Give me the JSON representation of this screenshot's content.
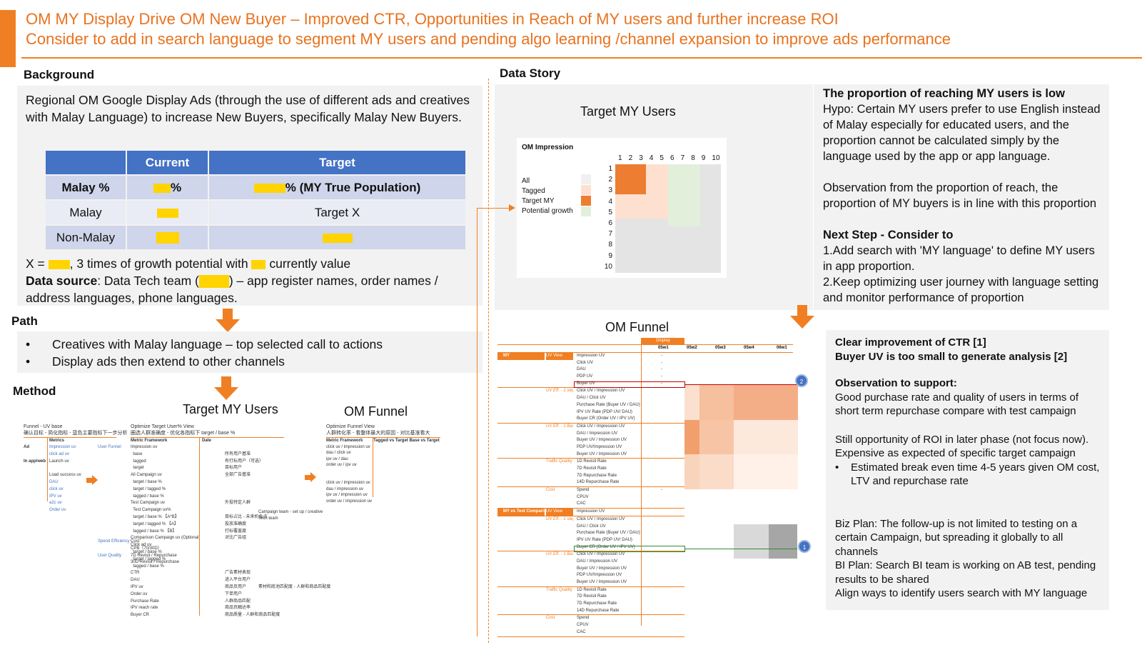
{
  "title": {
    "line1": "OM MY Display Drive OM New Buyer – Improved CTR, Opportunities in Reach of MY users and further increase ROI",
    "line2": "Consider to add in search language to segment MY users and pending algo learning /channel expansion to improve ads performance"
  },
  "background": {
    "heading": "Background",
    "text": "Regional OM Google Display Ads (through the use of different ads and creatives with Malay Language) to increase New Buyers, specifically Malay New Buyers.",
    "table": {
      "headers": [
        "",
        "Current",
        "Target"
      ],
      "rows": [
        {
          "label": "Malay %",
          "current_suffix": "%",
          "target_suffix": "% (MY True Population)"
        },
        {
          "label": "Malay",
          "current_suffix": "",
          "target_suffix": "Target X"
        },
        {
          "label": "Non-Malay",
          "current_suffix": "",
          "target_suffix": ""
        }
      ]
    },
    "x_line_a": "X = ",
    "x_line_b": ", 3 times of growth potential with ",
    "x_line_c": " currently value",
    "source_label": "Data source",
    "source_a": ": Data Tech team (",
    "source_b": ") – app register names, order names / address languages, phone languages."
  },
  "path": {
    "heading": "Path",
    "bullets": [
      "Creatives with Malay language – top selected call to actions",
      "Display ads then extend to other channels"
    ]
  },
  "method": {
    "heading": "Method",
    "target_title": "Target MY Users",
    "funnel_title": "OM Funnel",
    "left_header_1": "Funnel - UV base",
    "left_header_2": "确认目标 - 简化指标 - 蓝色主要指标下一步分析",
    "left_metrics_label": "Metrics",
    "left_rows": [
      {
        "stage": "Ad",
        "metric": "Impression uv",
        "user": "User Funnel"
      },
      {
        "stage": "",
        "metric": "click ad uv",
        "user": ""
      },
      {
        "stage": "In app/web",
        "metric": "Launch uv",
        "user": ""
      },
      {
        "stage": "",
        "metric": "",
        "user": ""
      },
      {
        "stage": "",
        "metric": "Load success uv",
        "user": ""
      },
      {
        "stage": "",
        "metric": "DAU",
        "user": ""
      },
      {
        "stage": "",
        "metric": "click uv",
        "user": ""
      },
      {
        "stage": "",
        "metric": "IPV uv",
        "user": ""
      },
      {
        "stage": "",
        "metric": "a2c uv",
        "user": ""
      },
      {
        "stage": "",
        "metric": "Order uv",
        "user": ""
      }
    ],
    "left_bottom": [
      {
        "label": "Spend Efficiency",
        "metric": "Cost"
      },
      {
        "label": "",
        "metric": "CPB（70/30D）"
      },
      {
        "label": "User Quality",
        "metric": "7D Revisit / Repurchase"
      },
      {
        "label": "",
        "metric": "30D Revisit / Repurchase"
      }
    ],
    "mid_header_1": "Optimize Target User% View",
    "mid_header_2": "圈选人群准确度 - 优化各指标下 target / base %",
    "mid_cols": [
      "Metric Framework",
      "Date"
    ],
    "mid_rows": [
      {
        "m": "Impression uv",
        "d": ""
      },
      {
        "m": "  base",
        "d": "所有用户基准"
      },
      {
        "m": "  tagged",
        "d": "有打标用户（可选）"
      },
      {
        "m": "  target",
        "d": "目标用户"
      },
      {
        "m": "All Campaign uv",
        "d": "全部广告基准"
      },
      {
        "m": "  target / base %",
        "d": ""
      },
      {
        "m": "  target / tagged %",
        "d": ""
      },
      {
        "m": "  tagged / base %",
        "d": ""
      },
      {
        "m": "Test Campaign uv",
        "d": "外投特定人群"
      },
      {
        "m": "  Test Campaign uv%",
        "d": ""
      },
      {
        "m": "  target / base % 【A*B】",
        "d": "目标占比 - 未来机会点"
      },
      {
        "m": "  target / tagged % 【A】",
        "d": "投放准确度"
      },
      {
        "m": "  tagged / base % 【B】",
        "d": "打标覆盖度"
      },
      {
        "m": "Comparison Campaign uv (Optional)",
        "d": "对比广告组"
      },
      {
        "m": "Click ad uv",
        "d": ""
      },
      {
        "m": "  target / base %",
        "d": ""
      },
      {
        "m": "  target / tagged %",
        "d": ""
      },
      {
        "m": "  tagged / base %",
        "d": ""
      },
      {
        "m": "CTR",
        "d": "广告素材表现"
      },
      {
        "m": "DAU",
        "d": "进入平台用户"
      },
      {
        "m": "IPV uv",
        "d": "商品页用户"
      },
      {
        "m": "Order uv",
        "d": "下单用户"
      },
      {
        "m": "Purchase Rate",
        "d": "人群商品匹配"
      },
      {
        "m": "IPV reach rate",
        "d": "商品页触达率"
      },
      {
        "m": "Buyer CR",
        "d": "商品质量 - 人群和商品匹配度"
      }
    ],
    "mid_team_1": "Campaign team - set up / creative",
    "mid_team_2": "Tech team",
    "mid_note": "素材和底池匹配度 - 人群和商品匹配度",
    "right_header_1": "Optimize Funnel View",
    "right_header_2": "人群转化率 - 看整体最大的原因 - 对比基准看大",
    "right_cols": [
      "Metric Framework",
      "Tagged vs Target  Base vs Target"
    ],
    "right_rows": [
      "click uv / impression uv",
      "dau / click uv",
      "ipv uv / dau",
      "order uv / ipv uv",
      "",
      "",
      "click uv / impression uv",
      "dau / impression uv",
      "ipv uv / impression uv",
      "order uv / impression uv"
    ]
  },
  "data_story": {
    "heading": "Data Story",
    "target_title": "Target MY Users",
    "impression_title": "OM Impression",
    "legend": [
      "All",
      "Tagged",
      "Target MY",
      "Potential growth"
    ],
    "legend_colors": [
      "#f0f0f0",
      "#fde0d0",
      "#ed7d31",
      "#e2efda"
    ],
    "grid_cols": [
      "1",
      "2",
      "3",
      "4",
      "5",
      "6",
      "7",
      "8",
      "9",
      "10"
    ],
    "grid_rows": [
      "1",
      "2",
      "3",
      "4",
      "5",
      "6",
      "7",
      "8",
      "9",
      "10"
    ],
    "funnel_title": "OM Funnel",
    "funnel_col_header": "Display",
    "funnel_weeks": [
      "05w1",
      "05w2",
      "05w3",
      "05w4",
      "06w1"
    ],
    "funnel_sections": [
      {
        "label": "MY",
        "sub": "UV View",
        "rows": [
          "Impression UV",
          "Click UV",
          "DAU",
          "PDP UV",
          "Buyer UV"
        ]
      },
      {
        "label": "",
        "sub": "UV Eff. - 1 step",
        "rows": [
          "Click UV / Impression UV",
          "DAU / Click UV",
          "Purchase Rate (Buyer UV / DAU)",
          "IPV UV Rate (PDP UV/ DAU)",
          "Buyer CR (Order UV / IPV UV)"
        ]
      },
      {
        "label": "",
        "sub": "UV Eff. - 1 Base",
        "rows": [
          "Click UV / Impression UV",
          "DAU / Impression UV",
          "Buyer UV / Impression UV",
          "PDP UV/Impression UV",
          "Buyer UV / Impression UV"
        ]
      },
      {
        "label": "",
        "sub": "Traffic Quality",
        "rows": [
          "1D Revisit Rate",
          "7D Revisit Rate",
          "7D Repurchase Rate",
          "14D Repurchase Rate"
        ]
      },
      {
        "label": "",
        "sub": "Cost",
        "rows": [
          "Spend",
          "CPUV",
          "CAC"
        ]
      },
      {
        "label": "MY vs Test Comparison",
        "sub": "UV View",
        "rows": [
          "Impression UV"
        ]
      },
      {
        "label": "",
        "sub": "UV Eff. - 1 step",
        "rows": [
          "Click UV / Impression UV",
          "DAU / Click UV",
          "Purchase Rate (Buyer UV / DAU)",
          "IPV UV Rate (PDP UV/ DAU)",
          "Buyer CR (Order UV / IPV UV)"
        ]
      },
      {
        "label": "",
        "sub": "UV Eff. - 1 Base",
        "rows": [
          "Click UV / Impression UV",
          "DAU / Impression UV",
          "Buyer UV / Impression UV",
          "PDP UV/Impression UV",
          "Buyer UV / Impression UV"
        ]
      },
      {
        "label": "",
        "sub": "Traffic Quality",
        "rows": [
          "1D Revisit Rate",
          "7D Revisit Rate",
          "7D Repurchase Rate",
          "14D Repurchase Rate"
        ]
      },
      {
        "label": "",
        "sub": "Cost",
        "rows": [
          "Spend",
          "CPUV",
          "CAC"
        ]
      }
    ],
    "funnel_dash": "-",
    "badge_1": "1",
    "badge_2": "2",
    "proportion_heading": "The proportion of reaching MY users is low",
    "hypo": "Hypo: Certain MY users prefer to use English instead of Malay especially for educated users, and the proportion cannot be calculated simply by the language used by the app or app language.",
    "observation": "Observation from the proportion of reach, the proportion of MY buyers is in line with this proportion",
    "next_heading": "Next Step - Consider to",
    "next_1": "1.Add search with 'MY language' to define MY users in app proportion.",
    "next_2": "2.Keep optimizing user journey with language setting and monitor performance of proportion",
    "ctr_1": "Clear improvement of CTR [1]",
    "ctr_2": "Buyer UV is too small to generate analysis [2]",
    "obs_heading": "Observation to support:",
    "obs_1": "Good purchase rate and quality of users in terms of short term repurchase compare with test campaign",
    "obs_2": "Still opportunity of ROI in later phase (not focus now). Expensive as expected of specific target campaign",
    "obs_bullet": "Estimated break even time 4-5 years given OM cost, LTV and repurchase rate",
    "biz_plan": "Biz Plan: The follow-up is not limited to testing on a certain Campaign, but spreading it globally to all channels",
    "bi_plan": "BI Plan: Search BI team is working on AB test, pending results to be shared",
    "align": "Align ways to identify users search with MY language"
  }
}
